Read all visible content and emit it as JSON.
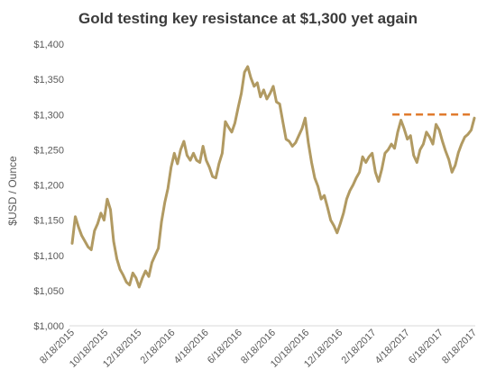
{
  "chart_data": {
    "type": "line",
    "title": "Gold testing key resistance at $1,300 yet again",
    "xlabel": "",
    "ylabel": "$USD / Ounce",
    "ylim": [
      1000,
      1400
    ],
    "yticks": [
      1000,
      1050,
      1100,
      1150,
      1200,
      1250,
      1300,
      1350,
      1400
    ],
    "ytick_labels": [
      "$1,000",
      "$1,050",
      "$1,100",
      "$1,150",
      "$1,200",
      "$1,250",
      "$1,300",
      "$1,350",
      "$1,400"
    ],
    "xtick_labels": [
      "8/18/2015",
      "10/18/2015",
      "12/18/2015",
      "2/18/2016",
      "4/18/2016",
      "6/18/2016",
      "8/18/2016",
      "10/18/2016",
      "12/18/2016",
      "2/18/2017",
      "4/18/2017",
      "6/18/2017",
      "8/18/2017"
    ],
    "grid": false,
    "legend": "none",
    "series": [
      {
        "color": "#b19a62",
        "values": [
          1117,
          1155,
          1140,
          1128,
          1120,
          1112,
          1108,
          1135,
          1145,
          1160,
          1150,
          1180,
          1165,
          1120,
          1095,
          1080,
          1072,
          1062,
          1058,
          1075,
          1068,
          1055,
          1068,
          1078,
          1070,
          1090,
          1100,
          1110,
          1148,
          1175,
          1195,
          1225,
          1245,
          1230,
          1250,
          1262,
          1242,
          1235,
          1245,
          1235,
          1232,
          1255,
          1235,
          1225,
          1212,
          1210,
          1230,
          1245,
          1290,
          1282,
          1275,
          1288,
          1310,
          1330,
          1360,
          1368,
          1352,
          1340,
          1345,
          1325,
          1335,
          1322,
          1330,
          1340,
          1318,
          1315,
          1290,
          1265,
          1262,
          1255,
          1260,
          1270,
          1280,
          1295,
          1260,
          1232,
          1210,
          1198,
          1180,
          1185,
          1168,
          1150,
          1142,
          1132,
          1145,
          1160,
          1180,
          1192,
          1200,
          1210,
          1218,
          1240,
          1232,
          1240,
          1245,
          1218,
          1205,
          1222,
          1245,
          1250,
          1258,
          1252,
          1275,
          1292,
          1280,
          1265,
          1270,
          1242,
          1232,
          1250,
          1258,
          1275,
          1268,
          1258,
          1286,
          1278,
          1262,
          1248,
          1236,
          1218,
          1228,
          1246,
          1258,
          1268,
          1272,
          1278,
          1295
        ],
        "resistance_line": {
          "value": 1300,
          "color": "#e07b2e",
          "start_category": "3/18/2017",
          "end_category": "8/18/2017"
        }
      }
    ]
  }
}
